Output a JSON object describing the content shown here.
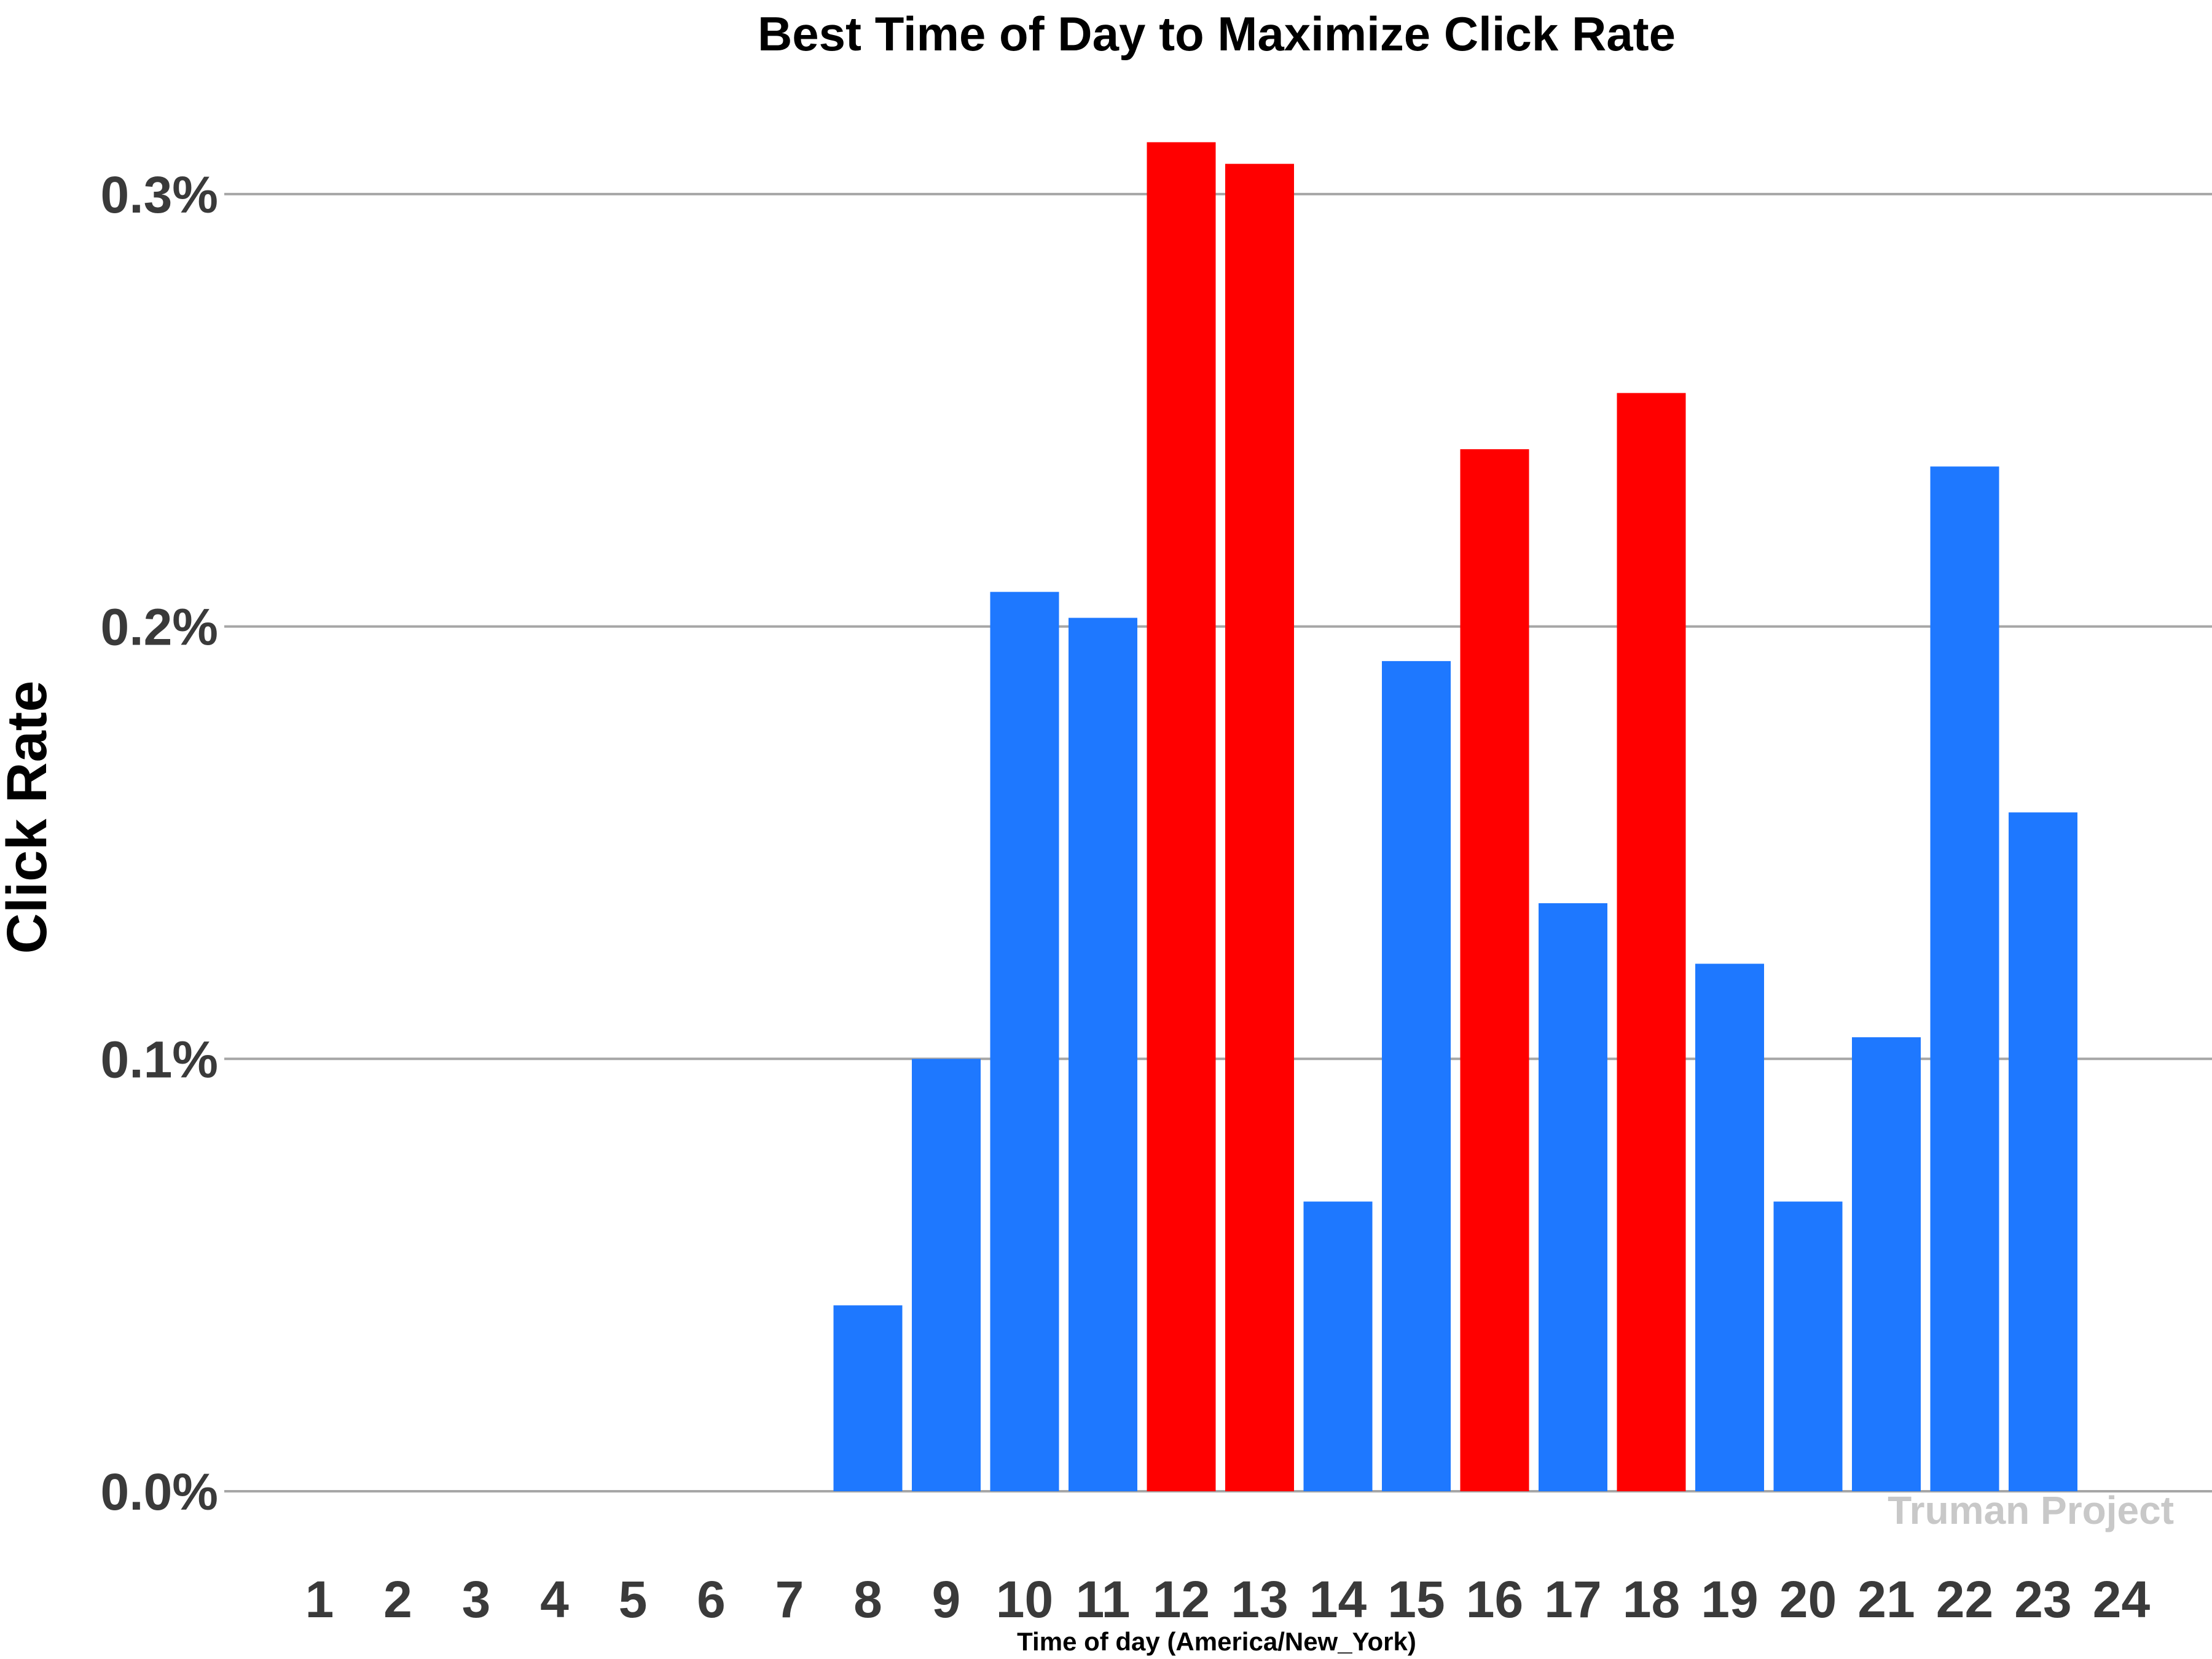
{
  "chart_data": {
    "type": "bar",
    "title": "Best Time of Day to Maximize Click Rate",
    "xlabel": "Time of day (America/New_York)",
    "ylabel": "Click Rate",
    "categories": [
      "1",
      "2",
      "3",
      "4",
      "5",
      "6",
      "7",
      "8",
      "9",
      "10",
      "11",
      "12",
      "13",
      "14",
      "15",
      "16",
      "17",
      "18",
      "19",
      "20",
      "21",
      "22",
      "23",
      "24"
    ],
    "values": [
      0,
      0,
      0,
      0,
      0,
      0,
      0,
      0.043,
      0.1,
      0.208,
      0.202,
      0.312,
      0.307,
      0.067,
      0.192,
      0.241,
      0.136,
      0.254,
      0.122,
      0.067,
      0.105,
      0.237,
      0.157,
      0
    ],
    "highlighted": [
      false,
      false,
      false,
      false,
      false,
      false,
      false,
      false,
      false,
      false,
      false,
      true,
      true,
      false,
      false,
      true,
      false,
      true,
      false,
      false,
      false,
      false,
      false,
      false
    ],
    "yticks": [
      0,
      0.1,
      0.2,
      0.3
    ],
    "ytick_labels": [
      "0.0%",
      "0.1%",
      "0.2%",
      "0.3%"
    ],
    "ylim": [
      -0.014,
      0.333
    ],
    "grid": "horizontal",
    "colors": {
      "default": "#1e78ff",
      "highlight": "#ff0000",
      "grid": "#a6a6a6"
    }
  },
  "watermark": "Truman Project"
}
